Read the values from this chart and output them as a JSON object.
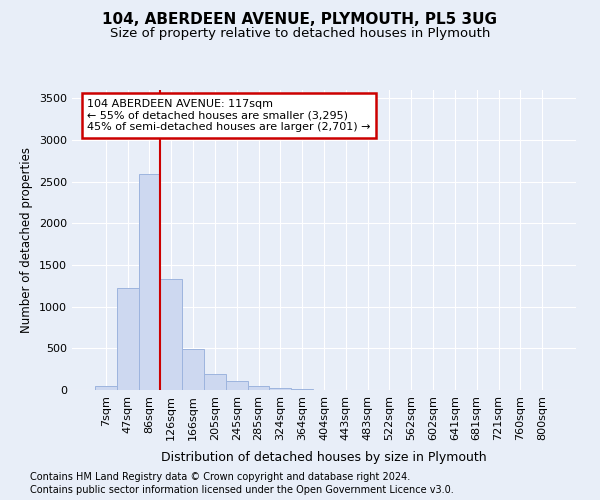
{
  "title1": "104, ABERDEEN AVENUE, PLYMOUTH, PL5 3UG",
  "title2": "Size of property relative to detached houses in Plymouth",
  "xlabel": "Distribution of detached houses by size in Plymouth",
  "ylabel": "Number of detached properties",
  "footer1": "Contains HM Land Registry data © Crown copyright and database right 2024.",
  "footer2": "Contains public sector information licensed under the Open Government Licence v3.0.",
  "bar_color": "#cdd8f0",
  "bar_edgecolor": "#9db4de",
  "categories": [
    "7sqm",
    "47sqm",
    "86sqm",
    "126sqm",
    "166sqm",
    "205sqm",
    "245sqm",
    "285sqm",
    "324sqm",
    "364sqm",
    "404sqm",
    "443sqm",
    "483sqm",
    "522sqm",
    "562sqm",
    "602sqm",
    "641sqm",
    "681sqm",
    "721sqm",
    "760sqm",
    "800sqm"
  ],
  "values": [
    50,
    1220,
    2590,
    1330,
    490,
    195,
    110,
    50,
    25,
    12,
    6,
    3,
    2,
    1,
    1,
    0,
    0,
    0,
    0,
    0,
    0
  ],
  "ylim": [
    0,
    3600
  ],
  "yticks": [
    0,
    500,
    1000,
    1500,
    2000,
    2500,
    3000,
    3500
  ],
  "red_line_x": 2.5,
  "annotation_text": "104 ABERDEEN AVENUE: 117sqm\n← 55% of detached houses are smaller (3,295)\n45% of semi-detached houses are larger (2,701) →",
  "annotation_box_color": "#ffffff",
  "annotation_box_edgecolor": "#cc0000",
  "background_color": "#e8eef8",
  "grid_color": "#ffffff",
  "title1_fontsize": 11,
  "title2_fontsize": 9.5,
  "xlabel_fontsize": 9,
  "ylabel_fontsize": 8.5,
  "tick_fontsize": 8,
  "annotation_fontsize": 8,
  "footer_fontsize": 7
}
